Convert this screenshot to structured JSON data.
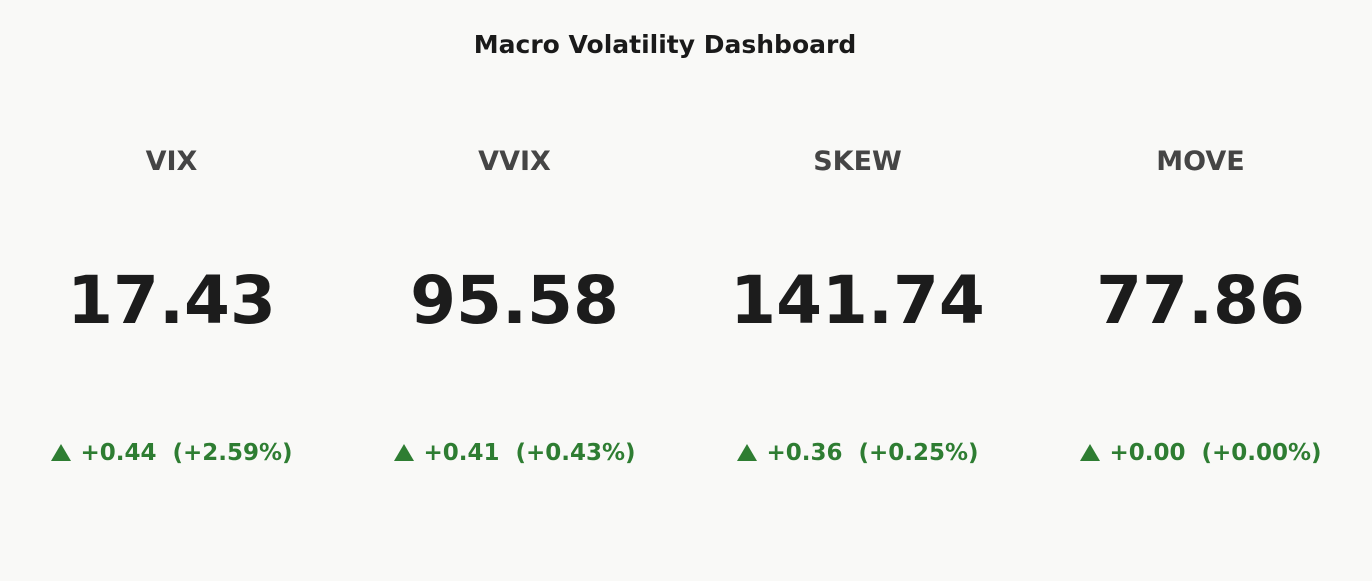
{
  "header": {
    "title": "Macro Volatility Dashboard"
  },
  "cards": [
    {
      "name": "VIX",
      "value": 17.43,
      "delta": "+0.44",
      "delta_pct": "(+2.59%)"
    },
    {
      "name": "VVIX",
      "value": 95.58,
      "delta": "+0.41",
      "delta_pct": "(+0.43%)"
    },
    {
      "name": "SKEW",
      "value": 141.74,
      "delta": "+0.36",
      "delta_pct": "(+0.25%)"
    },
    {
      "name": "MOVE",
      "value": 77.86,
      "delta": "+0.00",
      "delta_pct": "(+0.00%)"
    }
  ]
}
